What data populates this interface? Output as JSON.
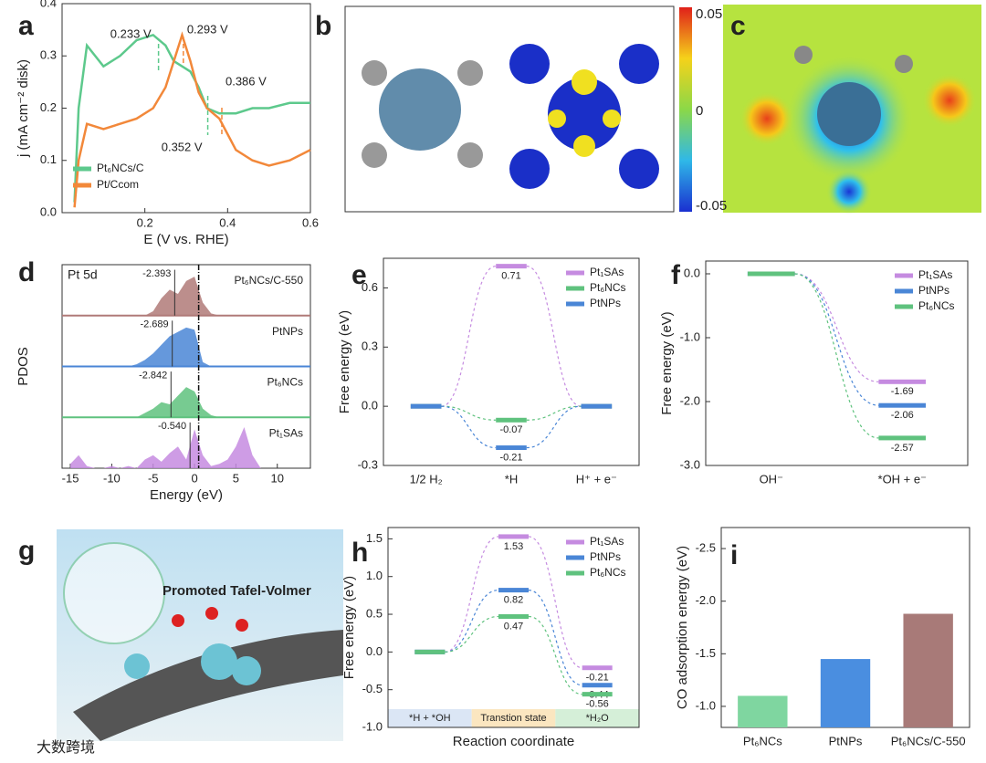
{
  "panel_labels": [
    "a",
    "b",
    "c",
    "d",
    "e",
    "f",
    "g",
    "h",
    "i"
  ],
  "images": {
    "colorbar_labels": [
      "0.05",
      "0",
      "-0.05"
    ],
    "g_caption": "Promoted Tafel-Volmer"
  },
  "watermark": "大数跨境",
  "chart_data": [
    {
      "type": "line",
      "xlabel": "E (V vs. RHE)",
      "ylabel": "j (mA cm⁻² disk)",
      "x": [
        0.03,
        0.04,
        0.06,
        0.08,
        0.1,
        0.14,
        0.18,
        0.22,
        0.25,
        0.27,
        0.29,
        0.31,
        0.33,
        0.35,
        0.38,
        0.42,
        0.46,
        0.5,
        0.55,
        0.6
      ],
      "series": [
        {
          "name": "Pt₆NCs/C",
          "color": "#5dc98c",
          "values": [
            0.02,
            0.2,
            0.32,
            0.3,
            0.28,
            0.3,
            0.33,
            0.34,
            0.32,
            0.29,
            0.28,
            0.27,
            0.24,
            0.2,
            0.19,
            0.19,
            0.2,
            0.2,
            0.21,
            0.21
          ]
        },
        {
          "name": "Pt/Ccom",
          "color": "#f2883a",
          "values": [
            0.01,
            0.1,
            0.17,
            0.165,
            0.16,
            0.17,
            0.18,
            0.2,
            0.24,
            0.29,
            0.34,
            0.29,
            0.23,
            0.2,
            0.18,
            0.12,
            0.1,
            0.09,
            0.1,
            0.12
          ]
        }
      ],
      "annotations": [
        {
          "text": "0.233 V",
          "x": 0.233,
          "color": "#5dc98c"
        },
        {
          "text": "0.293 V",
          "x": 0.293,
          "color": "#f2883a"
        },
        {
          "text": "0.386 V",
          "x": 0.386,
          "color": "#f2883a"
        },
        {
          "text": "0.352 V",
          "x": 0.352,
          "color": "#5dc98c"
        }
      ],
      "xlim": [
        0,
        0.6
      ],
      "xticks": [
        0.2,
        0.4,
        0.6
      ],
      "ylim": [
        0,
        0.4
      ],
      "yticks": [
        {
          "value": 0,
          "label": "0.0"
        },
        0.1,
        0.2,
        0.3,
        0.4
      ],
      "legend": "lower left"
    },
    {
      "type": "area",
      "xlabel": "Energy (eV)",
      "ylabel": "PDOS",
      "annotation": "Pt 5d",
      "x": [
        -15,
        -14,
        -13,
        -12,
        -11,
        -10,
        -9,
        -8,
        -7,
        -6,
        -5,
        -4,
        -3,
        -2,
        -1,
        0,
        1,
        2,
        3,
        4,
        5,
        6,
        7,
        8
      ],
      "series": [
        {
          "name": "Pt₆NCs/C-550",
          "color": "#b07a78",
          "center": -2.393,
          "values": [
            0,
            0,
            0,
            0,
            0,
            0,
            0,
            0,
            0,
            0,
            0.1,
            0.4,
            0.6,
            0.5,
            0.8,
            0.9,
            0.3,
            0.05,
            0,
            0,
            0,
            0,
            0,
            0
          ]
        },
        {
          "name": "PtNPs",
          "color": "#4a86d6",
          "center": -2.689,
          "values": [
            0,
            0,
            0,
            0,
            0,
            0,
            0,
            0,
            0.05,
            0.15,
            0.3,
            0.5,
            0.7,
            0.8,
            0.9,
            0.85,
            0.1,
            0,
            0,
            0,
            0,
            0,
            0,
            0
          ]
        },
        {
          "name": "Pt₆NCs",
          "color": "#5fc27e",
          "center": -2.842,
          "values": [
            0,
            0,
            0,
            0,
            0,
            0,
            0,
            0,
            0,
            0.1,
            0.2,
            0.35,
            0.3,
            0.5,
            0.7,
            0.6,
            0.2,
            0.05,
            0,
            0,
            0,
            0,
            0,
            0
          ]
        },
        {
          "name": "Pt₁SAs",
          "color": "#c58be0",
          "center": -0.54,
          "center_label": "-0.540",
          "values": [
            0.1,
            0.3,
            0.05,
            0,
            0,
            0.05,
            0,
            0.05,
            0,
            0.2,
            0.3,
            0.15,
            0.35,
            0.5,
            0.2,
            0.9,
            0.3,
            0.05,
            0.1,
            0.2,
            0.5,
            0.95,
            0.3,
            0
          ]
        }
      ],
      "reference_line_x": 0.5,
      "xlim": [
        -16,
        14
      ],
      "xticks": [
        -15,
        -10,
        -5,
        0,
        5,
        10
      ]
    },
    {
      "type": "energy",
      "ylabel": "Free energy (eV)",
      "categories": [
        "1/2 H₂",
        "*H",
        "H⁺ + e⁻"
      ],
      "series": [
        {
          "name": "Pt₁SAs",
          "color": "#c58be0",
          "values": [
            0,
            0.71,
            0
          ]
        },
        {
          "name": "Pt₆NCs",
          "color": "#5fc27e",
          "values": [
            0,
            -0.07,
            0
          ]
        },
        {
          "name": "PtNPs",
          "color": "#4a86d6",
          "values": [
            0,
            -0.21,
            0
          ]
        }
      ],
      "labeled_points": [
        1
      ],
      "ylim": [
        -0.3,
        0.75
      ],
      "yticks": [
        -0.3,
        {
          "value": 0,
          "label": "0.0"
        },
        0.3,
        0.6
      ],
      "legend": "upper right"
    },
    {
      "type": "energy",
      "ylabel": "Free energy (eV)",
      "categories": [
        "OH⁻",
        "*OH + e⁻"
      ],
      "series": [
        {
          "name": "Pt₁SAs",
          "color": "#c58be0",
          "values": [
            0,
            -1.69
          ]
        },
        {
          "name": "PtNPs",
          "color": "#4a86d6",
          "values": [
            0,
            -2.06
          ]
        },
        {
          "name": "Pt₆NCs",
          "color": "#5fc27e",
          "values": [
            0,
            -2.57
          ]
        }
      ],
      "labeled_points": [
        1
      ],
      "ylim": [
        -3,
        0.2
      ],
      "yticks": [
        {
          "value": 0,
          "label": "0.0"
        },
        {
          "value": -1,
          "label": "-1.0"
        },
        {
          "value": -2,
          "label": "-2.0"
        },
        {
          "value": -3,
          "label": "-3.0"
        }
      ],
      "legend": "upper right"
    },
    {
      "type": "energy",
      "ylabel": "Free energy (eV)",
      "xlabel": "Reaction coordinate",
      "categories": [
        "*H + *OH",
        "Transtion state",
        "*H₂O"
      ],
      "category_band_colors": [
        "#dbe6f5",
        "#fbe6c0",
        "#d5efd8"
      ],
      "series": [
        {
          "name": "Pt₁SAs",
          "color": "#c58be0",
          "values": [
            0,
            1.53,
            -0.21
          ]
        },
        {
          "name": "PtNPs",
          "color": "#4a86d6",
          "values": [
            0,
            0.82,
            -0.44
          ]
        },
        {
          "name": "Pt₆NCs",
          "color": "#5fc27e",
          "values": [
            0,
            0.47,
            -0.56
          ]
        }
      ],
      "labeled_points": [
        1,
        2
      ],
      "ylim": [
        -1,
        1.65
      ],
      "yticks": [
        {
          "value": -1,
          "label": "-1.0"
        },
        -0.5,
        {
          "value": 0,
          "label": "0.0"
        },
        0.5,
        {
          "value": 1,
          "label": "1.0"
        },
        1.5
      ],
      "legend": "upper right"
    },
    {
      "type": "bar",
      "ylabel": "CO adsorption energy (eV)",
      "categories": [
        "Pt₆NCs",
        "PtNPs",
        "Pt₆NCs/C-550"
      ],
      "values": [
        -1.1,
        -1.45,
        -1.88
      ],
      "colors": [
        "#7fd6a0",
        "#4a8ee0",
        "#a87a78"
      ],
      "ylim": [
        -0.8,
        -2.7
      ],
      "yticks": [
        {
          "value": -1,
          "label": "-1.0"
        },
        -1.5,
        {
          "value": -2,
          "label": "-2.0"
        },
        -2.5
      ]
    }
  ]
}
